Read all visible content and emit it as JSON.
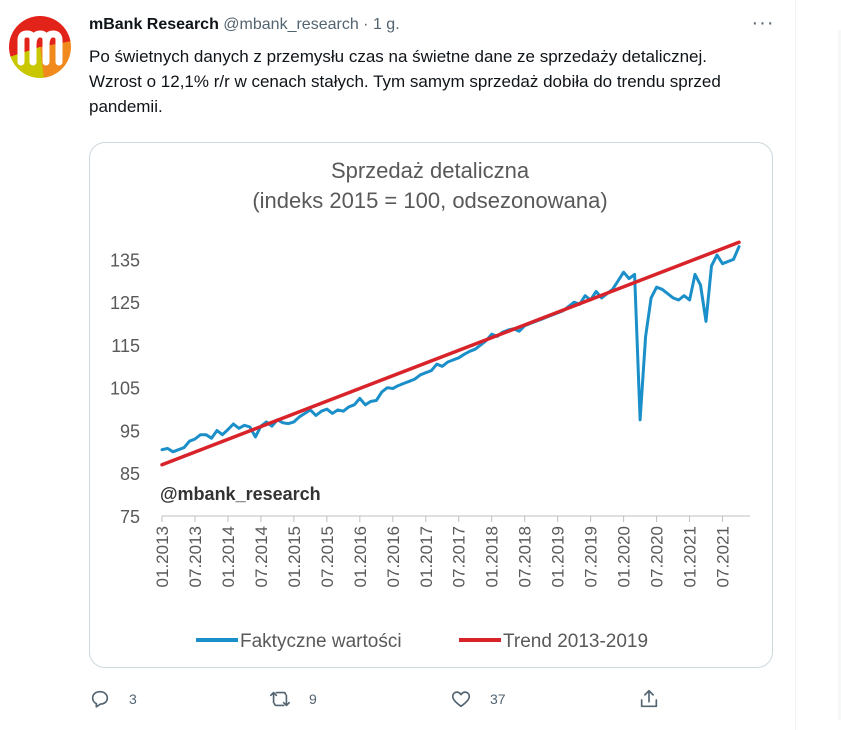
{
  "tweet": {
    "author_name": "mBank Research",
    "author_handle": "@mbank_research",
    "separator": "·",
    "time": "1 g.",
    "text": "Po świetnych danych z przemysłu czas na świetne dane ze sprzedaży detalicznej. Wzrost o 12,1% r/r w cenach stałych. Tym samym sprzedaż dobiła do trendu sprzed pandemii.",
    "more_icon": "more-icon"
  },
  "actions": {
    "reply_count": "3",
    "retweet_count": "9",
    "like_count": "37"
  },
  "chart_data": {
    "type": "line",
    "title": "Sprzedaż detaliczna",
    "subtitle": "(indeks 2015 = 100, odsezonowana)",
    "watermark": "@mbank_research",
    "ylim": [
      75,
      140
    ],
    "yticks": [
      75,
      85,
      95,
      105,
      115,
      125,
      135
    ],
    "xlim": [
      "2013-01",
      "2021-12"
    ],
    "xticks": [
      "01.2013",
      "07.2013",
      "01.2014",
      "07.2014",
      "01.2015",
      "07.2015",
      "01.2016",
      "07.2016",
      "01.2017",
      "07.2017",
      "01.2018",
      "07.2018",
      "01.2019",
      "07.2019",
      "01.2020",
      "07.2020",
      "01.2021",
      "07.2021"
    ],
    "legend_position": "bottom",
    "series": [
      {
        "name": "Faktyczne wartości",
        "color": "#1a8fc9",
        "points": [
          [
            "2013-01",
            90.5
          ],
          [
            "2013-02",
            90.8
          ],
          [
            "2013-03",
            90.0
          ],
          [
            "2013-04",
            90.5
          ],
          [
            "2013-05",
            91.0
          ],
          [
            "2013-06",
            92.5
          ],
          [
            "2013-07",
            93.0
          ],
          [
            "2013-08",
            94.0
          ],
          [
            "2013-09",
            94.0
          ],
          [
            "2013-10",
            93.2
          ],
          [
            "2013-11",
            95.0
          ],
          [
            "2013-12",
            94.0
          ],
          [
            "2014-01",
            95.2
          ],
          [
            "2014-02",
            96.5
          ],
          [
            "2014-03",
            95.5
          ],
          [
            "2014-04",
            96.2
          ],
          [
            "2014-05",
            95.8
          ],
          [
            "2014-06",
            93.5
          ],
          [
            "2014-07",
            96.0
          ],
          [
            "2014-08",
            97.0
          ],
          [
            "2014-09",
            96.0
          ],
          [
            "2014-10",
            97.5
          ],
          [
            "2014-11",
            96.8
          ],
          [
            "2014-12",
            96.6
          ],
          [
            "2015-01",
            97.0
          ],
          [
            "2015-02",
            98.2
          ],
          [
            "2015-03",
            99.0
          ],
          [
            "2015-04",
            99.8
          ],
          [
            "2015-05",
            98.5
          ],
          [
            "2015-06",
            99.5
          ],
          [
            "2015-07",
            100.0
          ],
          [
            "2015-08",
            99.0
          ],
          [
            "2015-09",
            99.8
          ],
          [
            "2015-10",
            99.5
          ],
          [
            "2015-11",
            100.5
          ],
          [
            "2015-12",
            101.0
          ],
          [
            "2016-01",
            102.5
          ],
          [
            "2016-02",
            101.0
          ],
          [
            "2016-03",
            101.8
          ],
          [
            "2016-04",
            102.0
          ],
          [
            "2016-05",
            104.0
          ],
          [
            "2016-06",
            105.0
          ],
          [
            "2016-07",
            104.8
          ],
          [
            "2016-08",
            105.5
          ],
          [
            "2016-09",
            106.0
          ],
          [
            "2016-10",
            106.5
          ],
          [
            "2016-11",
            107.0
          ],
          [
            "2016-12",
            108.0
          ],
          [
            "2017-01",
            108.5
          ],
          [
            "2017-02",
            109.0
          ],
          [
            "2017-03",
            110.5
          ],
          [
            "2017-04",
            110.0
          ],
          [
            "2017-05",
            111.0
          ],
          [
            "2017-06",
            111.5
          ],
          [
            "2017-07",
            112.0
          ],
          [
            "2017-08",
            112.8
          ],
          [
            "2017-09",
            113.5
          ],
          [
            "2017-10",
            114.0
          ],
          [
            "2017-11",
            115.0
          ],
          [
            "2017-12",
            116.0
          ],
          [
            "2018-01",
            117.5
          ],
          [
            "2018-02",
            117.0
          ],
          [
            "2018-03",
            118.0
          ],
          [
            "2018-04",
            118.5
          ],
          [
            "2018-05",
            118.8
          ],
          [
            "2018-06",
            118.2
          ],
          [
            "2018-07",
            119.5
          ],
          [
            "2018-08",
            120.0
          ],
          [
            "2018-09",
            120.5
          ],
          [
            "2018-10",
            121.0
          ],
          [
            "2018-11",
            121.5
          ],
          [
            "2018-12",
            122.0
          ],
          [
            "2019-01",
            122.5
          ],
          [
            "2019-02",
            123.0
          ],
          [
            "2019-03",
            124.0
          ],
          [
            "2019-04",
            125.0
          ],
          [
            "2019-05",
            124.5
          ],
          [
            "2019-06",
            126.5
          ],
          [
            "2019-07",
            125.5
          ],
          [
            "2019-08",
            127.5
          ],
          [
            "2019-09",
            126.0
          ],
          [
            "2019-10",
            127.0
          ],
          [
            "2019-11",
            128.0
          ],
          [
            "2019-12",
            130.0
          ],
          [
            "2020-01",
            132.0
          ],
          [
            "2020-02",
            130.5
          ],
          [
            "2020-03",
            131.5
          ],
          [
            "2020-04",
            97.5
          ],
          [
            "2020-05",
            117.0
          ],
          [
            "2020-06",
            126.0
          ],
          [
            "2020-07",
            128.5
          ],
          [
            "2020-08",
            128.0
          ],
          [
            "2020-09",
            127.0
          ],
          [
            "2020-10",
            126.0
          ],
          [
            "2020-11",
            125.5
          ],
          [
            "2020-12",
            126.5
          ],
          [
            "2021-01",
            125.5
          ],
          [
            "2021-02",
            131.5
          ],
          [
            "2021-03",
            129.0
          ],
          [
            "2021-04",
            120.5
          ],
          [
            "2021-05",
            133.5
          ],
          [
            "2021-06",
            136.0
          ],
          [
            "2021-07",
            134.0
          ],
          [
            "2021-08",
            134.5
          ],
          [
            "2021-09",
            135.0
          ],
          [
            "2021-10",
            138.0
          ]
        ]
      },
      {
        "name": "Trend 2013-2019",
        "color": "#d9232a",
        "points": [
          [
            "2013-01",
            87.0
          ],
          [
            "2021-10",
            139.0
          ]
        ]
      }
    ]
  }
}
